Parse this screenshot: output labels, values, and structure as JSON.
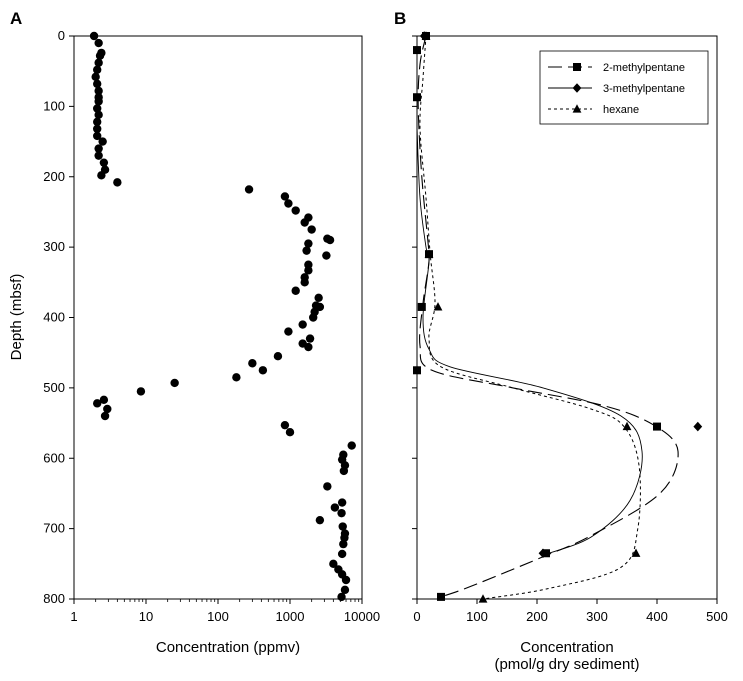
{
  "chart_data": [
    {
      "type": "scatter",
      "panel_label": "A",
      "xlabel": "Concentration (ppmv)",
      "ylabel": "Depth (mbsf)",
      "x_scale": "log",
      "xlim": [
        1,
        10000
      ],
      "ylim": [
        800,
        0
      ],
      "x_ticks": [
        1,
        10,
        100,
        1000,
        10000
      ],
      "x_tick_labels": [
        "1",
        "10",
        "100",
        "1000",
        "10000"
      ],
      "y_ticks": [
        0,
        100,
        200,
        300,
        400,
        500,
        600,
        700,
        800
      ],
      "y_tick_labels": [
        "0",
        "100",
        "200",
        "300",
        "400",
        "500",
        "600",
        "700",
        "800"
      ],
      "grid": false,
      "marker": "circle",
      "points": [
        {
          "x": 1.9,
          "y": 0
        },
        {
          "x": 2.2,
          "y": 10
        },
        {
          "x": 2.4,
          "y": 24
        },
        {
          "x": 2.3,
          "y": 28
        },
        {
          "x": 2.2,
          "y": 38
        },
        {
          "x": 2.1,
          "y": 48
        },
        {
          "x": 2.0,
          "y": 58
        },
        {
          "x": 2.1,
          "y": 68
        },
        {
          "x": 2.2,
          "y": 78
        },
        {
          "x": 2.2,
          "y": 87
        },
        {
          "x": 2.2,
          "y": 93
        },
        {
          "x": 2.1,
          "y": 103
        },
        {
          "x": 2.2,
          "y": 112
        },
        {
          "x": 2.1,
          "y": 122
        },
        {
          "x": 2.1,
          "y": 132
        },
        {
          "x": 2.1,
          "y": 142
        },
        {
          "x": 2.5,
          "y": 150
        },
        {
          "x": 2.2,
          "y": 160
        },
        {
          "x": 2.2,
          "y": 170
        },
        {
          "x": 2.6,
          "y": 180
        },
        {
          "x": 2.7,
          "y": 190
        },
        {
          "x": 2.4,
          "y": 198
        },
        {
          "x": 4.0,
          "y": 208
        },
        {
          "x": 270,
          "y": 218
        },
        {
          "x": 850,
          "y": 228
        },
        {
          "x": 950,
          "y": 238
        },
        {
          "x": 1200,
          "y": 248
        },
        {
          "x": 1800,
          "y": 258
        },
        {
          "x": 1600,
          "y": 265
        },
        {
          "x": 2000,
          "y": 275
        },
        {
          "x": 3300,
          "y": 288
        },
        {
          "x": 3600,
          "y": 290
        },
        {
          "x": 1800,
          "y": 295
        },
        {
          "x": 1700,
          "y": 305
        },
        {
          "x": 3200,
          "y": 312
        },
        {
          "x": 1800,
          "y": 325
        },
        {
          "x": 1800,
          "y": 333
        },
        {
          "x": 1600,
          "y": 343
        },
        {
          "x": 1600,
          "y": 350
        },
        {
          "x": 1200,
          "y": 362
        },
        {
          "x": 2500,
          "y": 372
        },
        {
          "x": 2300,
          "y": 383
        },
        {
          "x": 2600,
          "y": 385
        },
        {
          "x": 2200,
          "y": 392
        },
        {
          "x": 2100,
          "y": 400
        },
        {
          "x": 1500,
          "y": 410
        },
        {
          "x": 950,
          "y": 420
        },
        {
          "x": 1900,
          "y": 430
        },
        {
          "x": 1500,
          "y": 437
        },
        {
          "x": 1800,
          "y": 442
        },
        {
          "x": 680,
          "y": 455
        },
        {
          "x": 300,
          "y": 465
        },
        {
          "x": 420,
          "y": 475
        },
        {
          "x": 180,
          "y": 485
        },
        {
          "x": 25,
          "y": 493
        },
        {
          "x": 8.5,
          "y": 505
        },
        {
          "x": 2.6,
          "y": 517
        },
        {
          "x": 2.1,
          "y": 522
        },
        {
          "x": 2.9,
          "y": 530
        },
        {
          "x": 2.7,
          "y": 540
        },
        {
          "x": 850,
          "y": 553
        },
        {
          "x": 1000,
          "y": 563
        },
        {
          "x": 7200,
          "y": 582
        },
        {
          "x": 5500,
          "y": 595
        },
        {
          "x": 5300,
          "y": 602
        },
        {
          "x": 5800,
          "y": 610
        },
        {
          "x": 5600,
          "y": 618
        },
        {
          "x": 3300,
          "y": 640
        },
        {
          "x": 5300,
          "y": 663
        },
        {
          "x": 4200,
          "y": 670
        },
        {
          "x": 5200,
          "y": 678
        },
        {
          "x": 2600,
          "y": 688
        },
        {
          "x": 5400,
          "y": 697
        },
        {
          "x": 5800,
          "y": 707
        },
        {
          "x": 5700,
          "y": 713
        },
        {
          "x": 5500,
          "y": 722
        },
        {
          "x": 5300,
          "y": 736
        },
        {
          "x": 4000,
          "y": 750
        },
        {
          "x": 4700,
          "y": 758
        },
        {
          "x": 5300,
          "y": 765
        },
        {
          "x": 6000,
          "y": 773
        },
        {
          "x": 5800,
          "y": 787
        },
        {
          "x": 5200,
          "y": 797
        }
      ]
    },
    {
      "type": "scatter",
      "panel_label": "B",
      "xlabel_lines": [
        "Concentration",
        "(pmol/g dry sediment)"
      ],
      "xlim": [
        0,
        500
      ],
      "ylim": [
        800,
        0
      ],
      "x_ticks": [
        0,
        100,
        200,
        300,
        400,
        500
      ],
      "x_tick_labels": [
        "0",
        "100",
        "200",
        "300",
        "400",
        "500"
      ],
      "y_ticks": [
        0,
        100,
        200,
        300,
        400,
        500,
        600,
        700,
        800
      ],
      "grid": false,
      "legend_position": "top-right",
      "series": [
        {
          "name": "2-methylpentane",
          "marker": "square",
          "line": "long-dash",
          "points": [
            {
              "x": 15,
              "y": 0
            },
            {
              "x": 0,
              "y": 20
            },
            {
              "x": 0,
              "y": 87
            },
            {
              "x": 20,
              "y": 310
            },
            {
              "x": 8,
              "y": 385
            },
            {
              "x": 0,
              "y": 475
            },
            {
              "x": 400,
              "y": 555
            },
            {
              "x": 215,
              "y": 735
            },
            {
              "x": 40,
              "y": 797
            }
          ],
          "curve": [
            {
              "x": 15,
              "y": 0
            },
            {
              "x": 5,
              "y": 40
            },
            {
              "x": 2,
              "y": 100
            },
            {
              "x": 8,
              "y": 200
            },
            {
              "x": 18,
              "y": 290
            },
            {
              "x": 20,
              "y": 320
            },
            {
              "x": 10,
              "y": 380
            },
            {
              "x": 5,
              "y": 440
            },
            {
              "x": 25,
              "y": 475
            },
            {
              "x": 160,
              "y": 500
            },
            {
              "x": 310,
              "y": 525
            },
            {
              "x": 395,
              "y": 553
            },
            {
              "x": 435,
              "y": 590
            },
            {
              "x": 405,
              "y": 650
            },
            {
              "x": 290,
              "y": 710
            },
            {
              "x": 210,
              "y": 740
            },
            {
              "x": 90,
              "y": 782
            },
            {
              "x": 40,
              "y": 797
            }
          ]
        },
        {
          "name": "3-methylpentane",
          "marker": "diamond",
          "line": "solid",
          "points": [
            {
              "x": 12,
              "y": 0
            },
            {
              "x": 468,
              "y": 555
            },
            {
              "x": 210,
              "y": 735
            }
          ],
          "curve": [
            {
              "x": 0,
              "y": 130
            },
            {
              "x": 5,
              "y": 230
            },
            {
              "x": 15,
              "y": 300
            },
            {
              "x": 20,
              "y": 320
            },
            {
              "x": 10,
              "y": 400
            },
            {
              "x": 20,
              "y": 445
            },
            {
              "x": 55,
              "y": 470
            },
            {
              "x": 210,
              "y": 500
            },
            {
              "x": 340,
              "y": 540
            },
            {
              "x": 375,
              "y": 590
            },
            {
              "x": 355,
              "y": 660
            },
            {
              "x": 290,
              "y": 712
            },
            {
              "x": 212,
              "y": 737
            }
          ]
        },
        {
          "name": "hexane",
          "marker": "triangle",
          "line": "short-dash",
          "points": [
            {
              "x": 15,
              "y": 0
            },
            {
              "x": 20,
              "y": 310
            },
            {
              "x": 35,
              "y": 385
            },
            {
              "x": 350,
              "y": 555
            },
            {
              "x": 365,
              "y": 735
            },
            {
              "x": 110,
              "y": 800
            }
          ],
          "curve": [
            {
              "x": 15,
              "y": 0
            },
            {
              "x": 10,
              "y": 60
            },
            {
              "x": 5,
              "y": 130
            },
            {
              "x": 15,
              "y": 230
            },
            {
              "x": 22,
              "y": 310
            },
            {
              "x": 30,
              "y": 380
            },
            {
              "x": 20,
              "y": 430
            },
            {
              "x": 40,
              "y": 470
            },
            {
              "x": 160,
              "y": 500
            },
            {
              "x": 290,
              "y": 530
            },
            {
              "x": 345,
              "y": 555
            },
            {
              "x": 370,
              "y": 610
            },
            {
              "x": 368,
              "y": 700
            },
            {
              "x": 340,
              "y": 755
            },
            {
              "x": 220,
              "y": 785
            },
            {
              "x": 110,
              "y": 800
            }
          ]
        }
      ]
    }
  ]
}
